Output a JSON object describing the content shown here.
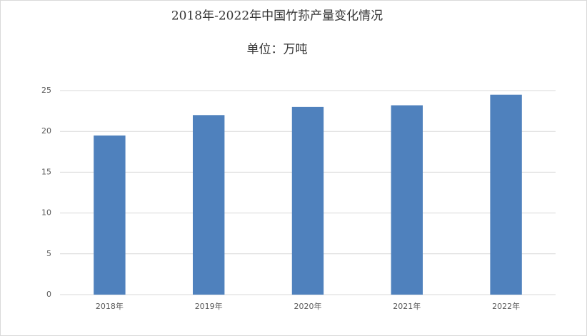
{
  "chart_data": {
    "type": "bar",
    "title": "2018年-2022年中国竹荪产量变化情况",
    "subtitle": "单位：万吨",
    "categories": [
      "2018年",
      "2019年",
      "2020年",
      "2021年",
      "2022年"
    ],
    "values": [
      19.5,
      22,
      23,
      23.2,
      24.5
    ],
    "color": "#4f81bd",
    "ylim": [
      0,
      25
    ],
    "yticks": [
      0,
      5,
      10,
      15,
      20,
      25
    ],
    "grid": true
  }
}
